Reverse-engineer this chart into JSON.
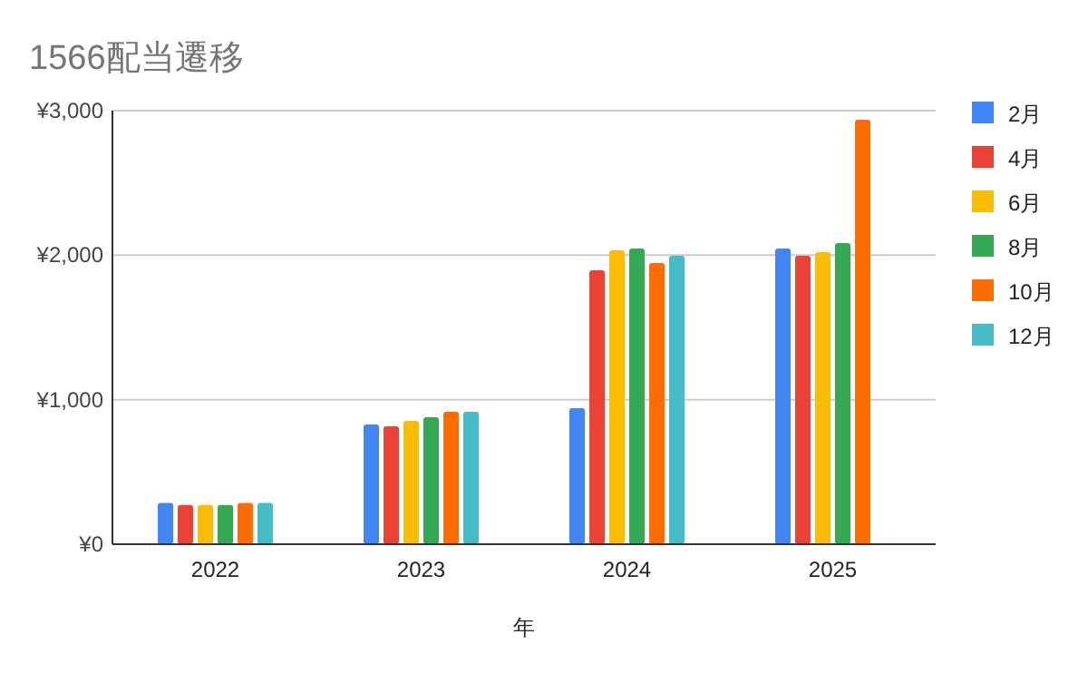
{
  "chart_data": {
    "type": "bar",
    "title": "1566配当遷移",
    "xlabel": "年",
    "categories": [
      "2022",
      "2023",
      "2024",
      "2025"
    ],
    "series": [
      {
        "name": "2月",
        "color": "#4285f4",
        "values": [
          285,
          828,
          941,
          2046
        ]
      },
      {
        "name": "4月",
        "color": "#ea4335",
        "values": [
          272,
          816,
          1895,
          1996
        ]
      },
      {
        "name": "6月",
        "color": "#fbbc04",
        "values": [
          272,
          854,
          2033,
          2021
        ]
      },
      {
        "name": "8月",
        "color": "#34a853",
        "values": [
          272,
          879,
          2046,
          2084
        ]
      },
      {
        "name": "10月",
        "color": "#ff6d01",
        "values": [
          285,
          916,
          1946,
          2937
        ]
      },
      {
        "name": "12月",
        "color": "#46bdc6",
        "values": [
          285,
          916,
          1996,
          null
        ]
      }
    ],
    "ylim": [
      0,
      3000
    ],
    "yticks": [
      {
        "value": 0,
        "label": "¥0"
      },
      {
        "value": 1000,
        "label": "¥1,000"
      },
      {
        "value": 2000,
        "label": "¥2,000"
      },
      {
        "value": 3000,
        "label": "¥3,000"
      }
    ],
    "grid": "y",
    "legend": "right"
  }
}
